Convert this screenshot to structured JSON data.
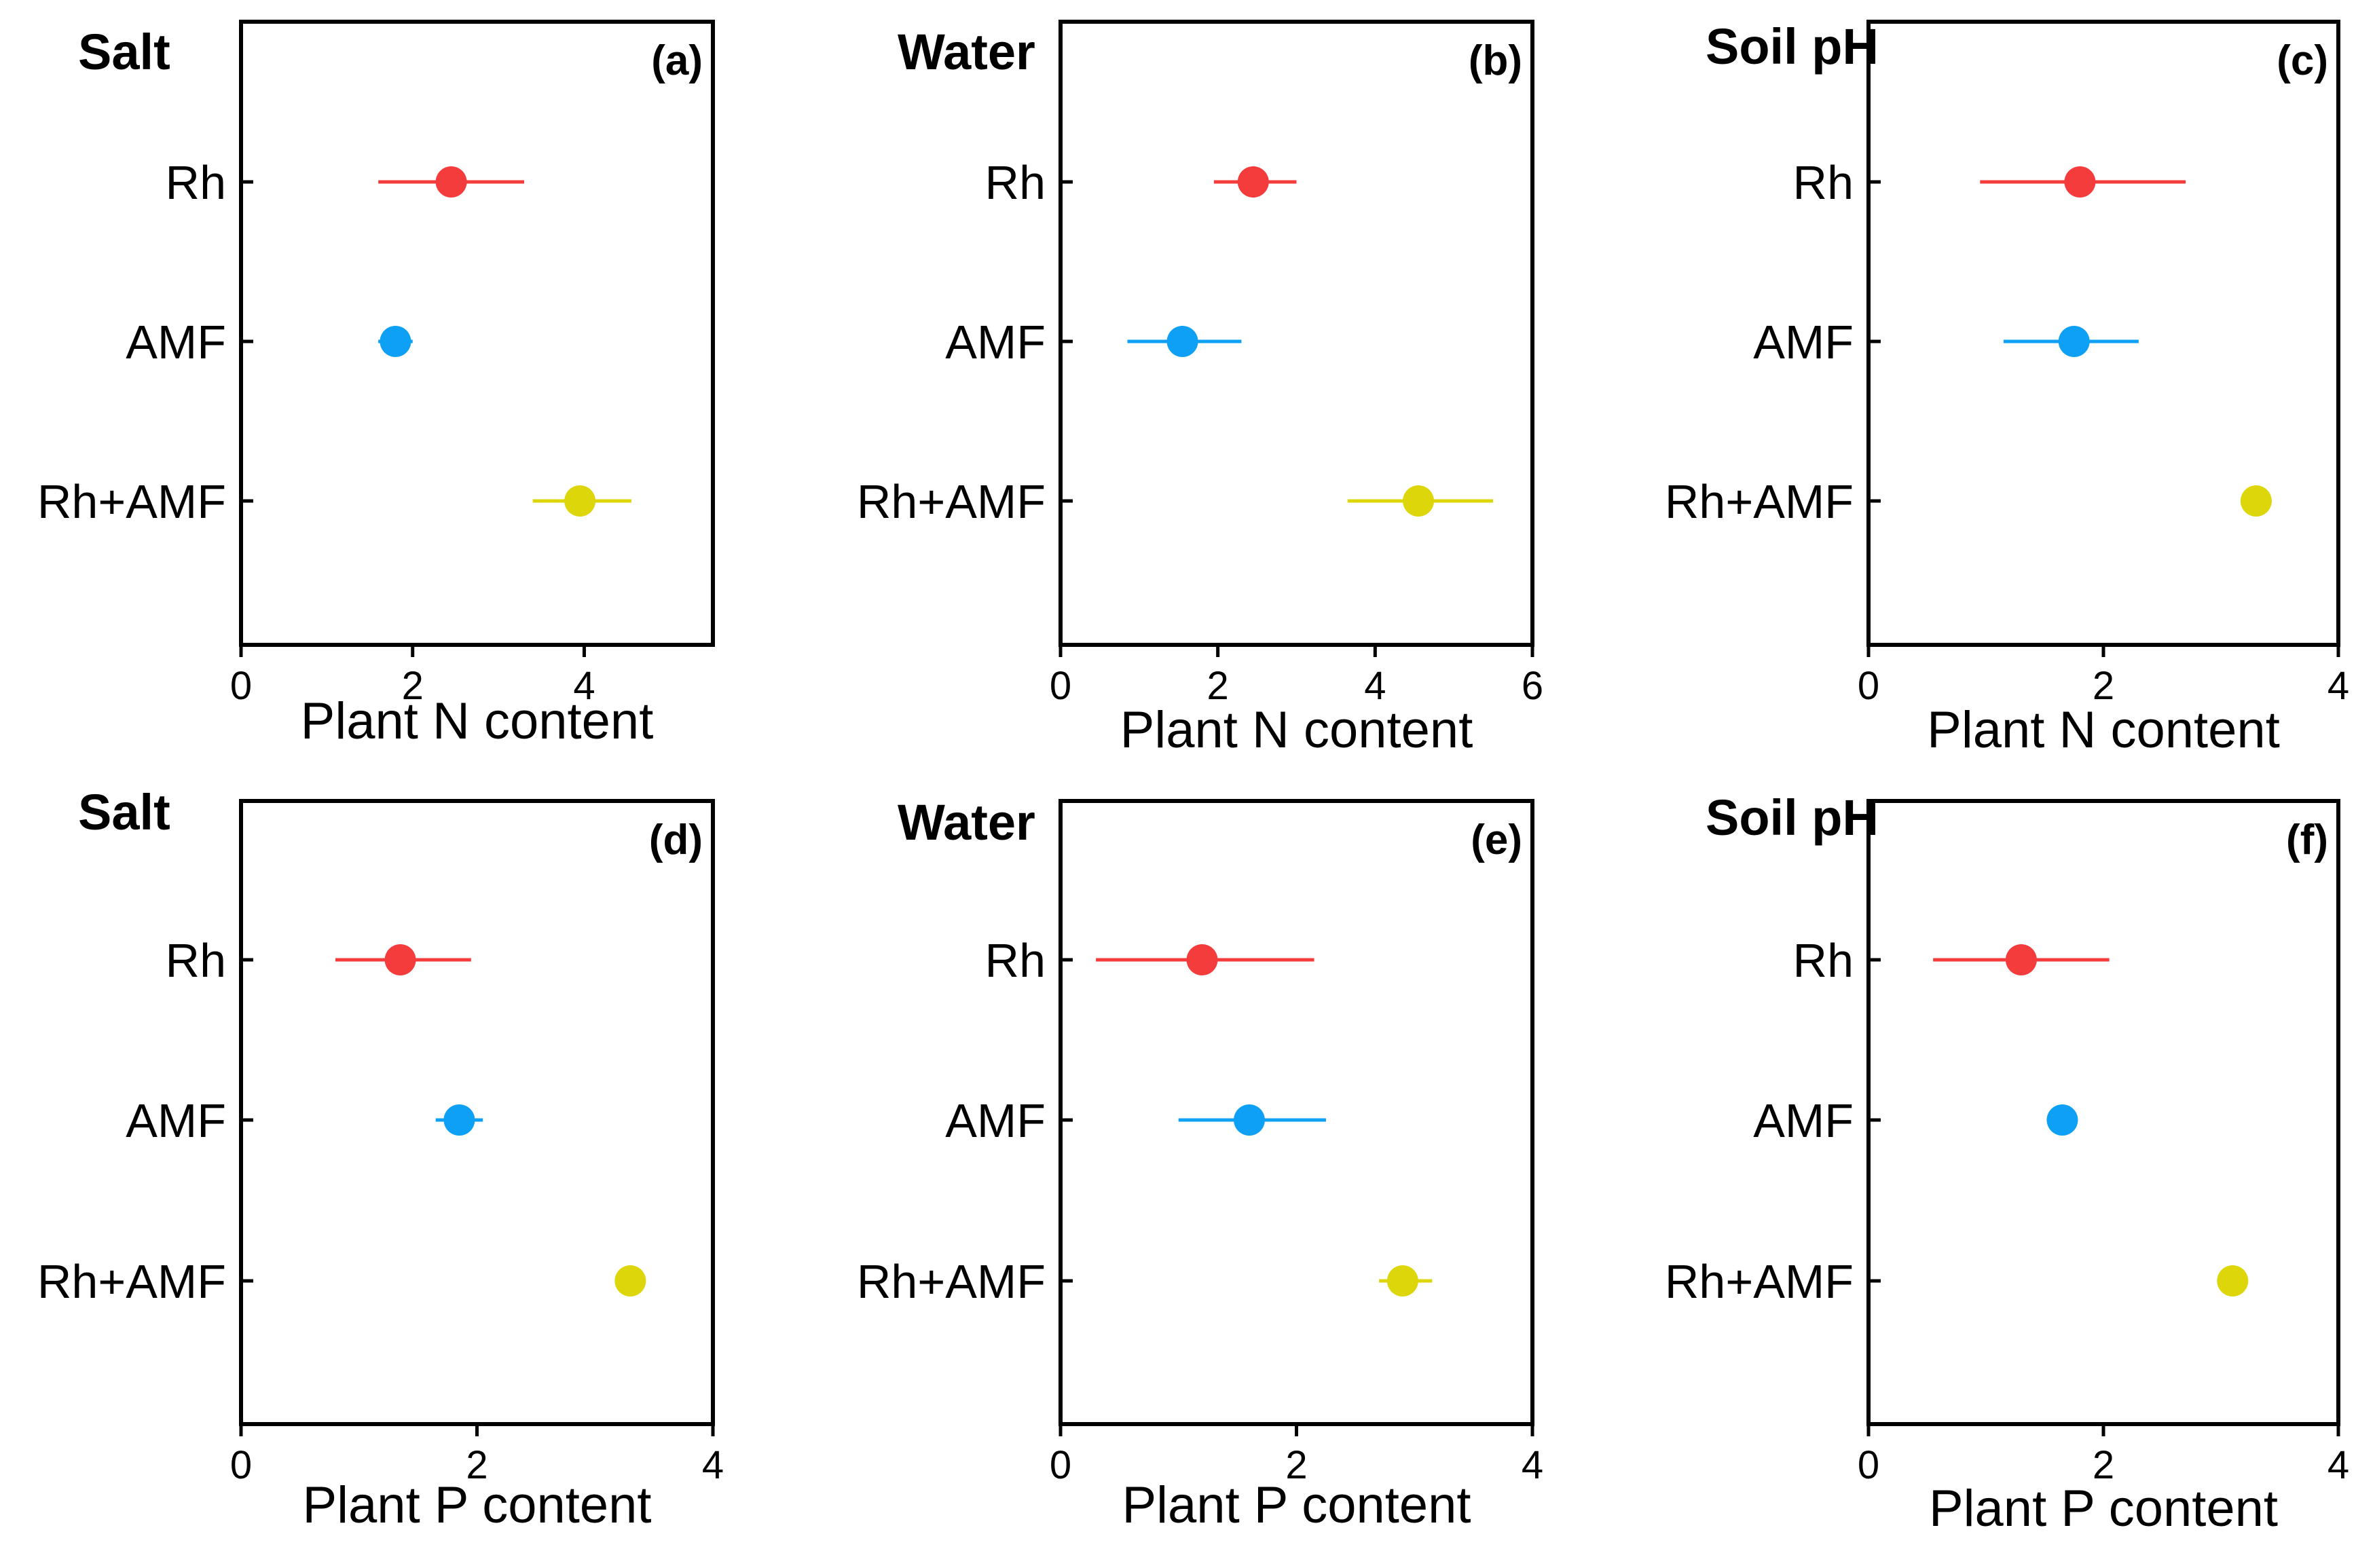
{
  "chart_data": [
    {
      "type": "scatter",
      "panel": "(a)",
      "title": "Salt",
      "xlabel": "Plant N content",
      "xlim": [
        0,
        5.5
      ],
      "xticks": [
        0,
        2,
        4
      ],
      "categories": [
        "Rh",
        "AMF",
        "Rh+AMF"
      ],
      "points": [
        {
          "category": "Rh",
          "value": 2.45,
          "ci": [
            1.6,
            3.3
          ]
        },
        {
          "category": "AMF",
          "value": 1.8,
          "ci": [
            1.6,
            2.0
          ]
        },
        {
          "category": "Rh+AMF",
          "value": 3.95,
          "ci": [
            3.4,
            4.55
          ]
        }
      ]
    },
    {
      "type": "scatter",
      "panel": "(b)",
      "title": "Water",
      "xlabel": "Plant N content",
      "xlim": [
        0,
        6
      ],
      "xticks": [
        0,
        2,
        4,
        6
      ],
      "categories": [
        "Rh",
        "AMF",
        "Rh+AMF"
      ],
      "points": [
        {
          "category": "Rh",
          "value": 2.45,
          "ci": [
            1.95,
            3.0
          ]
        },
        {
          "category": "AMF",
          "value": 1.55,
          "ci": [
            0.85,
            2.3
          ]
        },
        {
          "category": "Rh+AMF",
          "value": 4.55,
          "ci": [
            3.65,
            5.5
          ]
        }
      ]
    },
    {
      "type": "scatter",
      "panel": "(c)",
      "title": "Soil pH",
      "xlabel": "Plant N content",
      "xlim": [
        0,
        4
      ],
      "xticks": [
        0,
        2,
        4
      ],
      "categories": [
        "Rh",
        "AMF",
        "Rh+AMF"
      ],
      "points": [
        {
          "category": "Rh",
          "value": 1.8,
          "ci": [
            0.95,
            2.7
          ]
        },
        {
          "category": "AMF",
          "value": 1.75,
          "ci": [
            1.15,
            2.3
          ]
        },
        {
          "category": "Rh+AMF",
          "value": 3.3,
          "ci": [
            3.3,
            3.3
          ]
        }
      ]
    },
    {
      "type": "scatter",
      "panel": "(d)",
      "title": "Salt",
      "xlabel": "Plant P content",
      "xlim": [
        0,
        4
      ],
      "xticks": [
        0,
        2,
        4
      ],
      "categories": [
        "Rh",
        "AMF",
        "Rh+AMF"
      ],
      "points": [
        {
          "category": "Rh",
          "value": 1.35,
          "ci": [
            0.8,
            1.95
          ]
        },
        {
          "category": "AMF",
          "value": 1.85,
          "ci": [
            1.65,
            2.05
          ]
        },
        {
          "category": "Rh+AMF",
          "value": 3.3,
          "ci": [
            3.3,
            3.3
          ]
        }
      ]
    },
    {
      "type": "scatter",
      "panel": "(e)",
      "title": "Water",
      "xlabel": "Plant P content",
      "xlim": [
        0,
        4
      ],
      "xticks": [
        0,
        2,
        4
      ],
      "categories": [
        "Rh",
        "AMF",
        "Rh+AMF"
      ],
      "points": [
        {
          "category": "Rh",
          "value": 1.2,
          "ci": [
            0.3,
            2.15
          ]
        },
        {
          "category": "AMF",
          "value": 1.6,
          "ci": [
            1.0,
            2.25
          ]
        },
        {
          "category": "Rh+AMF",
          "value": 2.9,
          "ci": [
            2.7,
            3.15
          ]
        }
      ]
    },
    {
      "type": "scatter",
      "panel": "(f)",
      "title": "Soil pH",
      "xlabel": "Plant P content",
      "xlim": [
        0,
        4
      ],
      "xticks": [
        0,
        2,
        4
      ],
      "categories": [
        "Rh",
        "AMF",
        "Rh+AMF"
      ],
      "points": [
        {
          "category": "Rh",
          "value": 1.3,
          "ci": [
            0.55,
            2.05
          ]
        },
        {
          "category": "AMF",
          "value": 1.65,
          "ci": [
            1.65,
            1.65
          ]
        },
        {
          "category": "Rh+AMF",
          "value": 3.1,
          "ci": [
            3.1,
            3.1
          ]
        }
      ]
    }
  ],
  "colors": {
    "Rh": "#f53c3c",
    "AMF": "#0ea0f5",
    "Rh+AMF": "#dcd60a"
  }
}
